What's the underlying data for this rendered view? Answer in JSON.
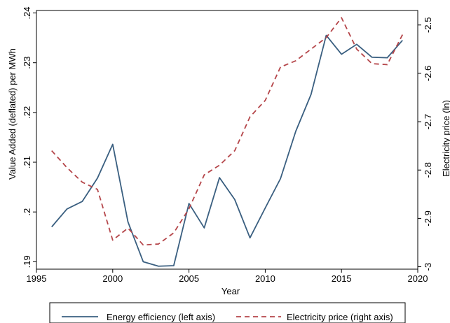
{
  "chart_data": {
    "type": "line",
    "xlabel": "Year",
    "ylabel_left": "Value Added (deflated) per MWh",
    "ylabel_right": "Electricity price (ln)",
    "xlim": [
      1995,
      2020
    ],
    "ylim_left": [
      0.1885,
      0.2405
    ],
    "ylim_right": [
      -3.005,
      -2.47
    ],
    "x_ticks": [
      1995,
      2000,
      2005,
      2010,
      2015,
      2020
    ],
    "x_tick_labels": [
      "1995",
      "2000",
      "2005",
      "2010",
      "2015",
      "2020"
    ],
    "y_left_ticks": [
      0.19,
      0.2,
      0.21,
      0.22,
      0.23,
      0.24
    ],
    "y_left_tick_labels": [
      ".19",
      ".2",
      ".21",
      ".22",
      ".23",
      ".24"
    ],
    "y_right_ticks": [
      -3,
      -2.9,
      -2.8,
      -2.7,
      -2.6,
      -2.5
    ],
    "y_right_tick_labels": [
      "-3",
      "-2.9",
      "-2.8",
      "-2.7",
      "-2.6",
      "-2.5"
    ],
    "grid": false,
    "legend_position": "bottom",
    "series": [
      {
        "name": "Energy efficiency (left axis)",
        "axis": "left",
        "color": "#3a5f80",
        "dash": "solid",
        "x": [
          1996,
          1997,
          1998,
          1999,
          2000,
          2001,
          2002,
          2003,
          2004,
          2005,
          2006,
          2007,
          2008,
          2009,
          2010,
          2011,
          2012,
          2013,
          2014,
          2015,
          2016,
          2017,
          2018,
          2019
        ],
        "y": [
          0.197,
          0.2006,
          0.2021,
          0.2068,
          0.2136,
          0.198,
          0.19,
          0.1891,
          0.1892,
          0.2017,
          0.1968,
          0.2069,
          0.2025,
          0.1948,
          0.2008,
          0.2067,
          0.2162,
          0.2236,
          0.2355,
          0.2317,
          0.2337,
          0.2311,
          0.231,
          0.2345
        ]
      },
      {
        "name": "Electricity price (right axis)",
        "axis": "right",
        "color": "#b5464a",
        "dash": "dashed",
        "x": [
          1996,
          1997,
          1998,
          1999,
          2000,
          2001,
          2002,
          2003,
          2004,
          2005,
          2006,
          2007,
          2008,
          2009,
          2010,
          2011,
          2012,
          2013,
          2014,
          2015,
          2016,
          2017,
          2018,
          2019
        ],
        "y": [
          -2.76,
          -2.795,
          -2.825,
          -2.84,
          -2.945,
          -2.92,
          -2.955,
          -2.953,
          -2.93,
          -2.88,
          -2.81,
          -2.79,
          -2.76,
          -2.69,
          -2.656,
          -2.587,
          -2.574,
          -2.55,
          -2.526,
          -2.485,
          -2.55,
          -2.58,
          -2.582,
          -2.52
        ]
      }
    ]
  }
}
